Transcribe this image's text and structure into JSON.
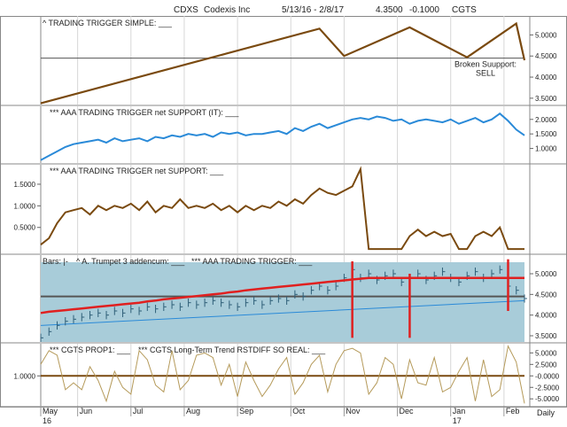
{
  "header": {
    "symbol": "CDXS",
    "company": "Codexis Inc",
    "date_range": "5/13/16 - 2/8/17",
    "price": "4.3500",
    "change": "-0.1000",
    "code": "CGTS"
  },
  "colors": {
    "brown": "#7a4a10",
    "blue": "#2a8ad8",
    "red": "#e02020",
    "panel_bg": "#a8ccd9",
    "grid": "#d7d7d7",
    "tan": "#b59a5a"
  },
  "chart_data": [
    {
      "type": "line",
      "panel": "price_trigger",
      "label": "^ TRADING TRIGGER SIMPLE: ___",
      "y_ticks": [
        "5.0000",
        "4.5000",
        "4.0000",
        "3.5000"
      ],
      "ylim": [
        3.35,
        5.45
      ],
      "support_level": 4.45,
      "x": [
        0,
        34,
        37,
        45,
        52,
        58,
        59
      ],
      "values": [
        3.38,
        5.15,
        4.5,
        5.18,
        4.47,
        5.27,
        4.4
      ],
      "annotation": [
        "Broken Suupport:",
        "SELL"
      ]
    },
    {
      "type": "line",
      "panel": "support_it",
      "label": "*** AAA TRADING TRIGGER net SUPPORT (IT): ___",
      "y_ticks": [
        "2.0000",
        "1.5000",
        "1.0000"
      ],
      "ylim": [
        0.5,
        2.45
      ],
      "x": [
        0,
        1,
        2,
        3,
        4,
        5,
        6,
        7,
        8,
        9,
        10,
        11,
        12,
        13,
        14,
        15,
        16,
        17,
        18,
        19,
        20,
        21,
        22,
        23,
        24,
        25,
        26,
        27,
        28,
        29,
        30,
        31,
        32,
        33,
        34,
        35,
        36,
        37,
        38,
        39,
        40,
        41,
        42,
        43,
        44,
        45,
        46,
        47,
        48,
        49,
        50,
        51,
        52,
        53,
        54,
        55,
        56,
        57,
        58,
        59
      ],
      "values": [
        0.6,
        0.75,
        0.9,
        1.05,
        1.15,
        1.2,
        1.25,
        1.3,
        1.2,
        1.35,
        1.25,
        1.3,
        1.35,
        1.25,
        1.4,
        1.35,
        1.45,
        1.4,
        1.5,
        1.45,
        1.5,
        1.4,
        1.55,
        1.5,
        1.55,
        1.45,
        1.5,
        1.5,
        1.55,
        1.6,
        1.5,
        1.7,
        1.6,
        1.75,
        1.85,
        1.7,
        1.8,
        1.9,
        2.0,
        2.05,
        2.0,
        2.1,
        2.05,
        1.95,
        2.0,
        1.85,
        1.95,
        2.0,
        1.95,
        1.9,
        2.0,
        1.85,
        1.95,
        2.05,
        1.9,
        2.0,
        2.2,
        1.95,
        1.65,
        1.45
      ]
    },
    {
      "type": "line",
      "panel": "support",
      "label": "*** AAA TRADING TRIGGER net SUPPORT: ___",
      "y_ticks": [
        "1.5000",
        "1.0000",
        "0.5000"
      ],
      "ylim": [
        -0.1,
        1.95
      ],
      "x": [
        0,
        1,
        2,
        3,
        4,
        5,
        6,
        7,
        8,
        9,
        10,
        11,
        12,
        13,
        14,
        15,
        16,
        17,
        18,
        19,
        20,
        21,
        22,
        23,
        24,
        25,
        26,
        27,
        28,
        29,
        30,
        31,
        32,
        33,
        34,
        35,
        36,
        37,
        38,
        39,
        40,
        41,
        42,
        43,
        44,
        45,
        46,
        47,
        48,
        49,
        50,
        51,
        52,
        53,
        54,
        55,
        56,
        57,
        58,
        59
      ],
      "values": [
        0.1,
        0.25,
        0.6,
        0.85,
        0.9,
        0.95,
        0.8,
        1.0,
        0.9,
        1.0,
        0.95,
        1.05,
        0.9,
        1.1,
        0.85,
        1.0,
        0.95,
        1.15,
        0.95,
        1.0,
        0.95,
        1.05,
        0.9,
        1.0,
        0.85,
        1.0,
        0.9,
        1.0,
        0.95,
        1.1,
        1.0,
        1.15,
        1.05,
        1.25,
        1.4,
        1.3,
        1.25,
        1.35,
        1.45,
        1.85,
        0.0,
        0.0,
        0.0,
        0.0,
        0.0,
        0.3,
        0.45,
        0.3,
        0.4,
        0.3,
        0.35,
        0.0,
        0.0,
        0.3,
        0.4,
        0.3,
        0.5,
        0.0,
        0.0,
        0.0
      ]
    },
    {
      "type": "ohlc",
      "panel": "bars",
      "label_parts": [
        "Bars: |-",
        "^ A. Trumpet 3 addencum: ___",
        "*** AAA TRADING TRIGGER: ___"
      ],
      "y_ticks": [
        "5.0000",
        "4.5000",
        "4.0000",
        "3.5000"
      ],
      "ylim": [
        3.35,
        5.45
      ],
      "support_level": 4.45,
      "bars": [
        3.45,
        3.6,
        3.75,
        3.85,
        3.9,
        3.95,
        4.0,
        4.05,
        4.0,
        4.1,
        4.05,
        4.15,
        4.1,
        4.2,
        4.15,
        4.2,
        4.25,
        4.2,
        4.3,
        4.25,
        4.3,
        4.35,
        4.3,
        4.25,
        4.2,
        4.3,
        4.35,
        4.25,
        4.35,
        4.4,
        4.35,
        4.5,
        4.45,
        4.6,
        4.7,
        4.6,
        4.7,
        4.9,
        5.1,
        4.9,
        5.0,
        4.85,
        4.95,
        5.0,
        4.8,
        4.9,
        5.0,
        4.85,
        4.95,
        5.05,
        4.9,
        4.8,
        4.95,
        5.05,
        4.9,
        5.0,
        5.1,
        4.7,
        4.6,
        4.4
      ],
      "trigger": [
        4.05,
        4.08,
        4.1,
        4.12,
        4.14,
        4.16,
        4.18,
        4.2,
        4.22,
        4.24,
        4.26,
        4.28,
        4.3,
        4.33,
        4.35,
        4.38,
        4.4,
        4.42,
        4.44,
        4.46,
        4.48,
        4.5,
        4.52,
        4.55,
        4.57,
        4.6,
        4.62,
        4.64,
        4.66,
        4.68,
        4.7,
        4.72,
        4.74,
        4.76,
        4.78,
        4.8,
        4.82,
        4.84,
        4.86,
        4.88,
        4.9,
        4.9,
        4.9,
        4.9,
        4.9,
        4.9,
        4.9,
        4.9,
        4.9,
        4.9,
        4.9,
        4.9,
        4.9,
        4.9,
        4.9,
        4.9,
        4.9,
        4.9,
        4.9,
        4.9
      ]
    },
    {
      "type": "line",
      "panel": "prop",
      "label_parts": [
        "*** CGTS PROP1: ___",
        "*** CGTS Long-Term Trend RSTDIFF SO REAL: ___"
      ],
      "left_tick": "1.0000",
      "y_ticks": [
        "5.0000",
        "2.5000",
        "-0.0000",
        "-2.5000",
        "-5.0000"
      ],
      "ylim": [
        -6.5,
        7
      ],
      "x": [
        0,
        1,
        2,
        3,
        4,
        5,
        6,
        7,
        8,
        9,
        10,
        11,
        12,
        13,
        14,
        15,
        16,
        17,
        18,
        19,
        20,
        21,
        22,
        23,
        24,
        25,
        26,
        27,
        28,
        29,
        30,
        31,
        32,
        33,
        34,
        35,
        36,
        37,
        38,
        39,
        40,
        41,
        42,
        43,
        44,
        45,
        46,
        47,
        48,
        49,
        50,
        51,
        52,
        53,
        54,
        55,
        56,
        57,
        58,
        59
      ],
      "values": [
        2.5,
        5.5,
        4.5,
        -3.0,
        -1.5,
        -3.0,
        2.0,
        -1.0,
        -5.5,
        1.0,
        -2.5,
        -4.0,
        5.5,
        3.5,
        -2.0,
        -3.5,
        5.5,
        -3.0,
        -1.0,
        4.5,
        5.0,
        4.0,
        -2.0,
        2.5,
        -4.5,
        3.0,
        -1.0,
        -4.5,
        -2.0,
        1.5,
        4.0,
        -4.0,
        -1.5,
        2.5,
        4.5,
        -3.5,
        2.5,
        5.5,
        6.0,
        5.0,
        -4.0,
        -1.5,
        4.0,
        2.5,
        -5.0,
        3.5,
        -1.5,
        -2.0,
        4.0,
        -3.5,
        -2.5,
        1.0,
        4.0,
        -5.5,
        3.5,
        -4.5,
        -3.0,
        6.5,
        3.0,
        -6.0
      ],
      "baseline": 0.0
    }
  ],
  "x_axis": {
    "labels": [
      "May",
      "Jun",
      "Jul",
      "Aug",
      "Sep",
      "Oct",
      "Nov",
      "Dec",
      "Jan",
      "Feb"
    ],
    "year_labels": [
      "16",
      "17"
    ],
    "period": "Daily"
  }
}
